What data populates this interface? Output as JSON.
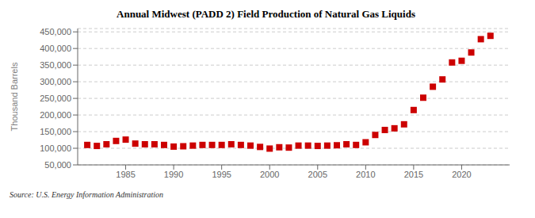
{
  "chart_data": {
    "type": "scatter",
    "title": "Annual Midwest (PADD 2) Field Production of Natural Gas Liquids",
    "y_label": "Thousand Barrels",
    "annotations": [
      "Source: U.S. Energy Information Administration"
    ],
    "x": [
      1981,
      1982,
      1983,
      1984,
      1985,
      1986,
      1987,
      1988,
      1989,
      1990,
      1991,
      1992,
      1993,
      1994,
      1995,
      1996,
      1997,
      1998,
      1999,
      2000,
      2001,
      2002,
      2003,
      2004,
      2005,
      2006,
      2007,
      2008,
      2009,
      2010,
      2011,
      2012,
      2013,
      2014,
      2015,
      2016,
      2017,
      2018,
      2019,
      2020,
      2021,
      2022,
      2023
    ],
    "values": [
      110000,
      107000,
      112000,
      122000,
      126000,
      114000,
      112000,
      112000,
      110000,
      105000,
      106000,
      108000,
      110000,
      110000,
      110000,
      112000,
      110000,
      108000,
      104000,
      99000,
      103000,
      102000,
      108000,
      108000,
      107000,
      108000,
      109000,
      112000,
      110000,
      118000,
      140000,
      155000,
      160000,
      172000,
      215000,
      252000,
      285000,
      307000,
      358000,
      363000,
      388000,
      428000,
      438000
    ],
    "color": "#cc0000",
    "marker": "square",
    "xlim": [
      1980,
      2025
    ],
    "xticks": [
      1985,
      1990,
      1995,
      2000,
      2005,
      2010,
      2015,
      2020
    ],
    "ylim": [
      50000,
      460000
    ],
    "yticks": [
      {
        "value": 50000,
        "label": "50,000"
      },
      {
        "value": 100000,
        "label": "100,000"
      },
      {
        "value": 150000,
        "label": "150,000"
      },
      {
        "value": 200000,
        "label": "200,000"
      },
      {
        "value": 250000,
        "label": "250,000"
      },
      {
        "value": 300000,
        "label": "300,000"
      },
      {
        "value": 350000,
        "label": "350,000"
      },
      {
        "value": 400000,
        "label": "400,000"
      },
      {
        "value": 450000,
        "label": "450,000"
      }
    ],
    "grid": true
  }
}
